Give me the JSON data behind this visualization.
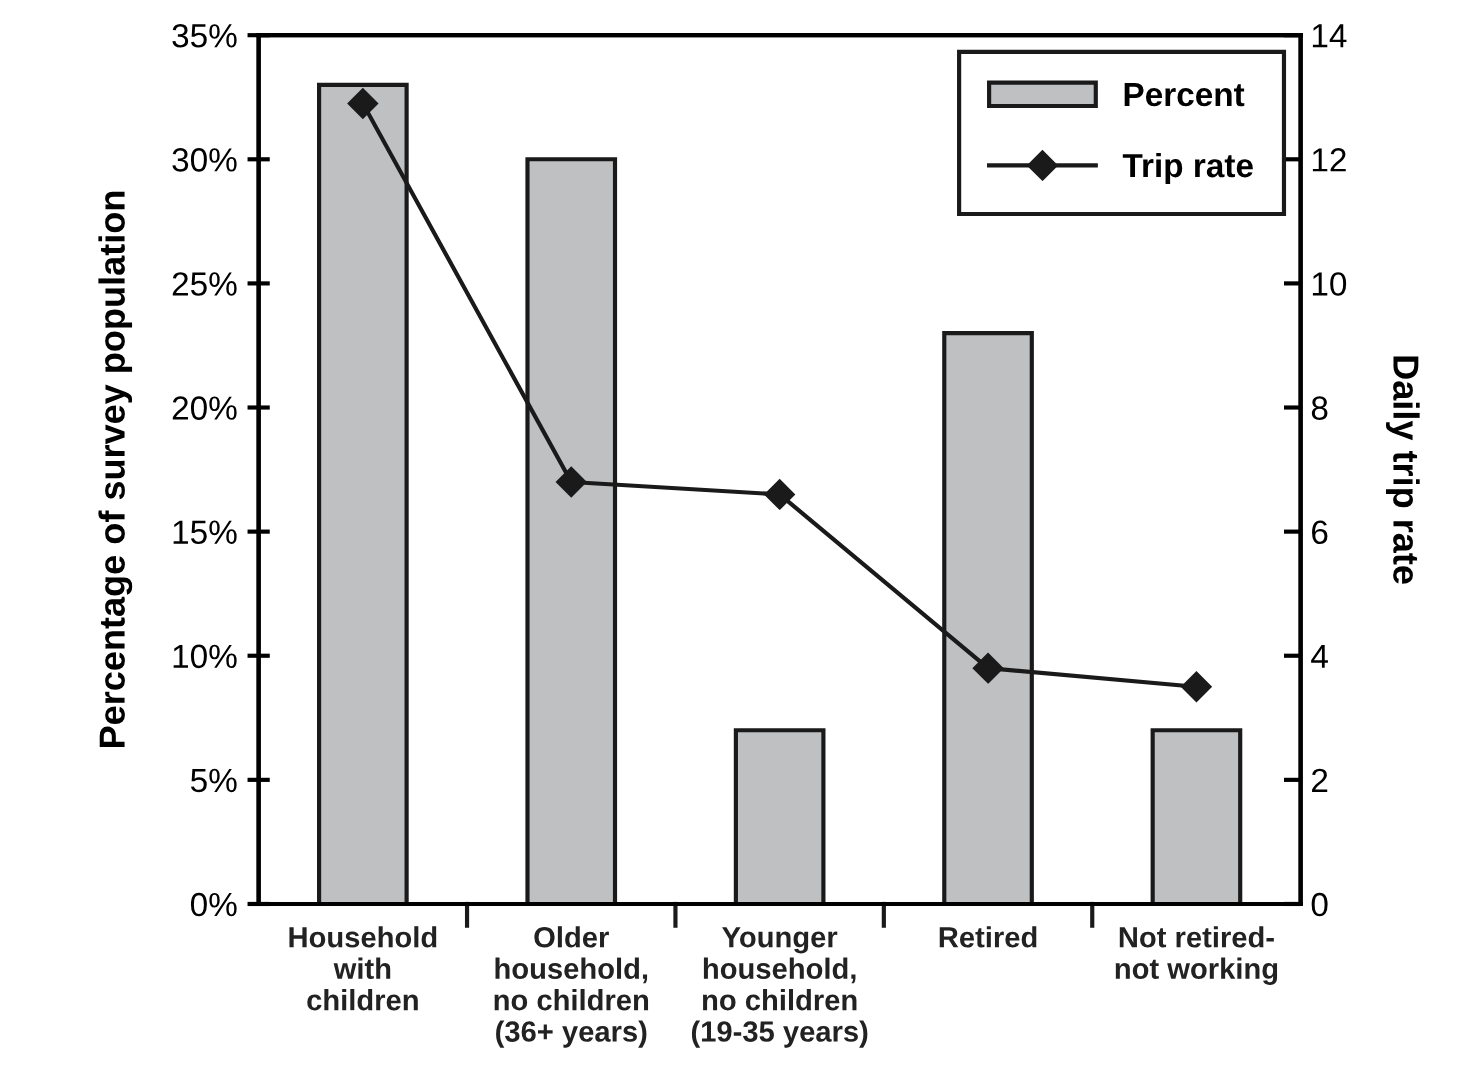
{
  "chart_data": {
    "type": "bar",
    "ylabel": "Percentage of survey population",
    "y2label": "Daily trip rate",
    "categories": [
      "Household\nwith\nchildren",
      "Older\nhousehold,\nno children\n(36+ years)",
      "Younger\nhousehold,\nno children\n(19-35 years)",
      "Retired",
      "Not retired-\nnot working"
    ],
    "series": [
      {
        "name": "Percent",
        "color": "#bfc0c2",
        "values": [
          33,
          30,
          7,
          23,
          7
        ]
      },
      {
        "name": "Trip rate",
        "type": "line",
        "axis": "y2",
        "color": "#1a1a1a",
        "marker": "diamond",
        "values": [
          12.9,
          6.8,
          6.6,
          3.8,
          3.5
        ]
      }
    ],
    "ylim": [
      0,
      35
    ],
    "yticks": [
      {
        "value": 0,
        "label": "0%"
      },
      {
        "value": 5,
        "label": "5%"
      },
      {
        "value": 10,
        "label": "10%"
      },
      {
        "value": 15,
        "label": "15%"
      },
      {
        "value": 20,
        "label": "20%"
      },
      {
        "value": 25,
        "label": "25%"
      },
      {
        "value": 30,
        "label": "30%"
      },
      {
        "value": 35,
        "label": "35%"
      }
    ],
    "y2lim": [
      0,
      14
    ],
    "y2ticks": [
      0,
      2,
      4,
      6,
      8,
      10,
      12,
      14
    ],
    "grid": false,
    "legend": "top right"
  }
}
